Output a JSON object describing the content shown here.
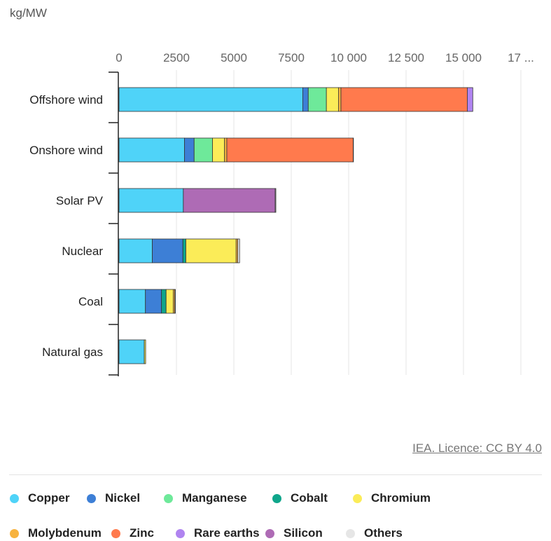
{
  "chart_data": {
    "type": "bar",
    "orientation": "horizontal",
    "stacked": true,
    "unit_label": "kg/MW",
    "categories": [
      "Offshore wind",
      "Onshore wind",
      "Solar PV",
      "Nuclear",
      "Coal",
      "Natural gas"
    ],
    "xlim": [
      0,
      17500
    ],
    "x_ticks": [
      "0",
      "2500",
      "5000",
      "7500",
      "10 000",
      "12 500",
      "15 000",
      "17 ..."
    ],
    "x_tick_values": [
      0,
      2500,
      5000,
      7500,
      10000,
      12500,
      15000,
      17500
    ],
    "grid": true,
    "legend_position": "bottom",
    "series": [
      {
        "name": "Copper",
        "color": "#4fd3f8",
        "values": [
          8000,
          2850,
          2800,
          1450,
          1150,
          1100
        ]
      },
      {
        "name": "Nickel",
        "color": "#3d7fd6",
        "values": [
          240,
          420,
          0,
          1330,
          700,
          0
        ]
      },
      {
        "name": "Manganese",
        "color": "#6ee99a",
        "values": [
          790,
          800,
          0,
          0,
          0,
          0
        ]
      },
      {
        "name": "Cobalt",
        "color": "#0fa68b",
        "values": [
          0,
          0,
          0,
          130,
          200,
          0
        ]
      },
      {
        "name": "Chromium",
        "color": "#fbec58",
        "values": [
          525,
          525,
          0,
          2190,
          310,
          60
        ]
      },
      {
        "name": "Molybdenum",
        "color": "#f7b33f",
        "values": [
          110,
          100,
          0,
          70,
          66,
          0
        ]
      },
      {
        "name": "Zinc",
        "color": "#ff7a4d",
        "values": [
          5500,
          5500,
          0,
          0,
          0,
          0
        ]
      },
      {
        "name": "Rare earths",
        "color": "#b084f0",
        "values": [
          240,
          14,
          0,
          0,
          0,
          0
        ]
      },
      {
        "name": "Silicon",
        "color": "#ae6bb5",
        "values": [
          0,
          0,
          4000,
          0,
          0,
          0
        ]
      },
      {
        "name": "Others",
        "color": "#e6e6e6",
        "values": [
          0,
          0,
          30,
          80,
          30,
          0
        ]
      }
    ]
  },
  "source": {
    "text": "IEA. Licence: CC BY 4.0"
  }
}
